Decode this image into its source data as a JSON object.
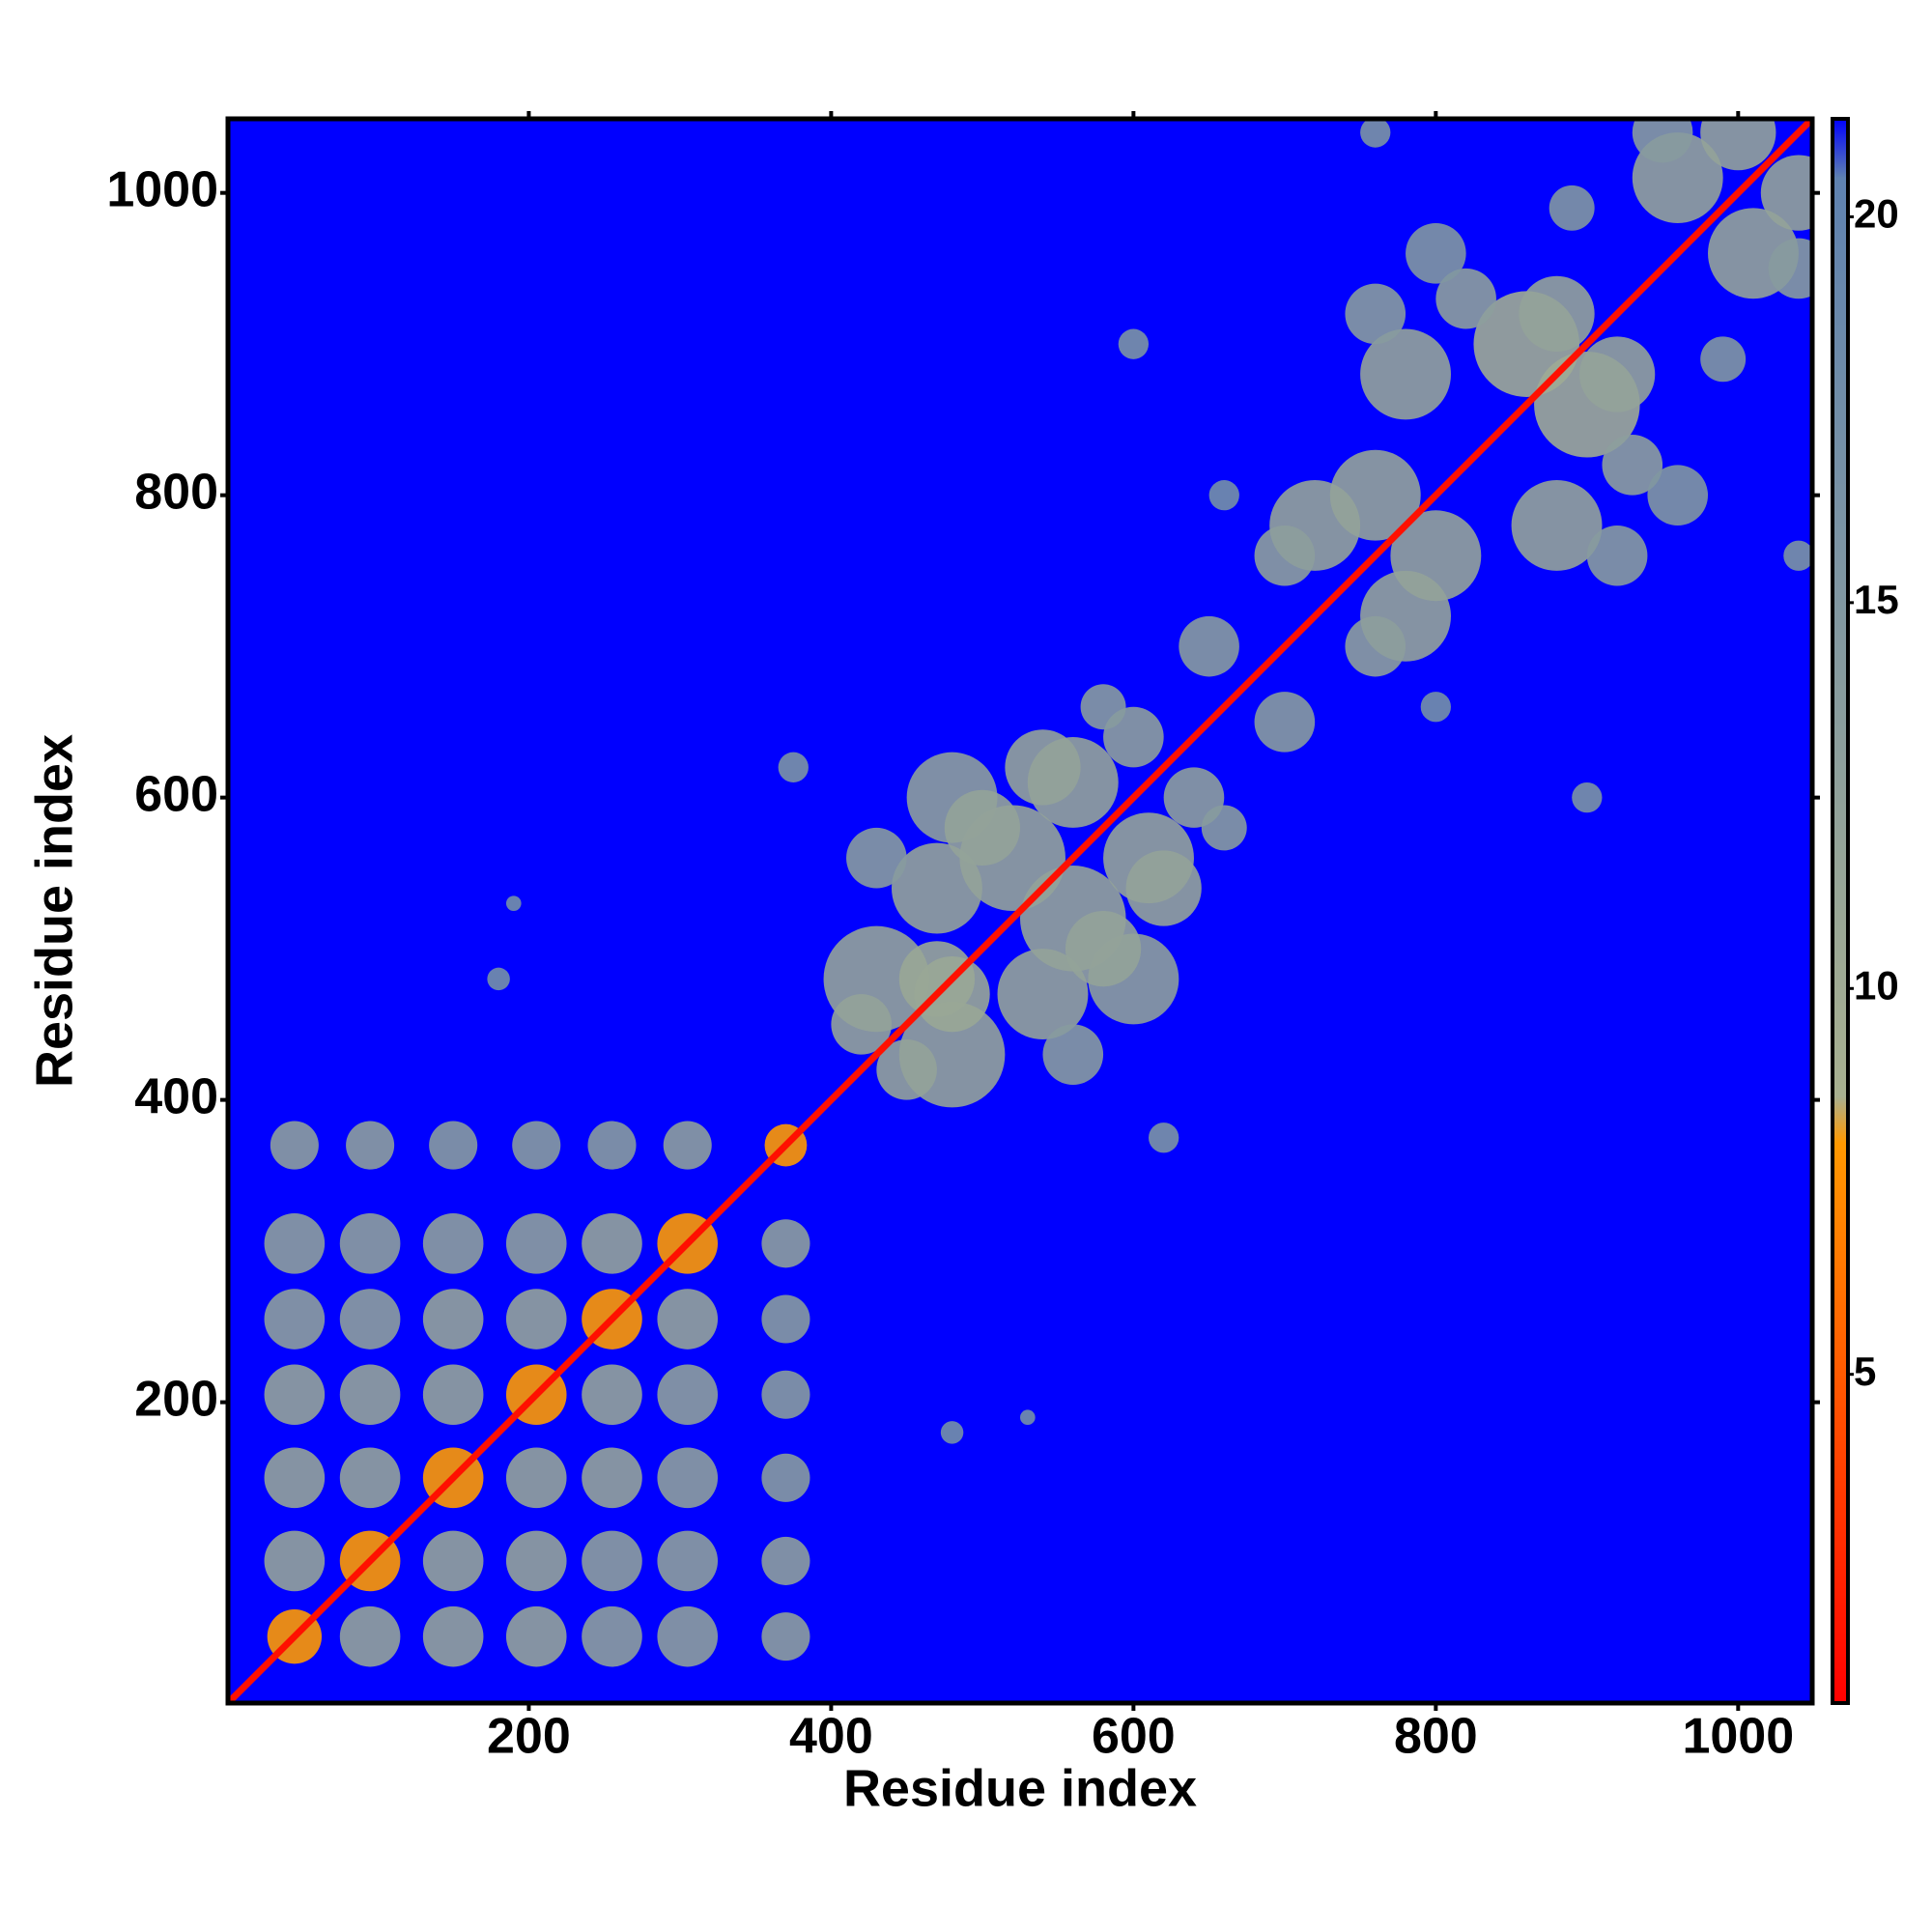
{
  "chart_data": {
    "type": "heatmap",
    "xlabel": "Residue index",
    "ylabel": "Residue index",
    "xlim": [
      1,
      1049
    ],
    "ylim": [
      1,
      1049
    ],
    "xticks": [
      200,
      400,
      600,
      800,
      1000
    ],
    "yticks": [
      200,
      400,
      600,
      800,
      1000
    ],
    "clim": [
      0.74,
      21.27
    ],
    "cticks": [
      5,
      10,
      15,
      20
    ],
    "colorscale": [
      {
        "value": 0.74,
        "color": "#ff0000"
      },
      {
        "value": 8,
        "color": "#ff9900"
      },
      {
        "value": 8.6,
        "color": "#a8b090"
      },
      {
        "value": 20.5,
        "color": "#5f82b0"
      },
      {
        "value": 21.27,
        "color": "#0000ff"
      }
    ],
    "background_value": 21.27,
    "diagonal_value": 1.5,
    "symmetric": true,
    "blobs": {
      "x": [
        45,
        45,
        45,
        45,
        45,
        45,
        45,
        95,
        95,
        95,
        95,
        95,
        95,
        150,
        150,
        150,
        150,
        150,
        205,
        205,
        205,
        205,
        255,
        255,
        255,
        305,
        305,
        370,
        430,
        470,
        520,
        480,
        560,
        500,
        430,
        600,
        540,
        470,
        450,
        580,
        650,
        720,
        760,
        780,
        860,
        880,
        820,
        760,
        700,
        960,
        1000,
        950,
        800,
        890,
        600,
        660,
        760,
        180,
        190,
        375
      ],
      "y": [
        45,
        95,
        150,
        205,
        255,
        305,
        370,
        95,
        150,
        205,
        255,
        305,
        370,
        150,
        205,
        255,
        305,
        370,
        205,
        255,
        305,
        370,
        255,
        305,
        370,
        305,
        370,
        370,
        480,
        540,
        560,
        600,
        610,
        580,
        560,
        640,
        620,
        480,
        420,
        660,
        700,
        780,
        800,
        880,
        900,
        920,
        930,
        920,
        760,
        1010,
        1040,
        1040,
        960,
        990,
        900,
        800,
        1040,
        480,
        530,
        620
      ],
      "size": [
        36,
        40,
        40,
        40,
        40,
        40,
        32,
        40,
        40,
        40,
        40,
        40,
        32,
        40,
        40,
        40,
        40,
        32,
        40,
        40,
        40,
        32,
        40,
        40,
        32,
        40,
        32,
        28,
        70,
        60,
        70,
        60,
        60,
        50,
        40,
        40,
        50,
        50,
        40,
        30,
        40,
        60,
        60,
        60,
        70,
        50,
        40,
        40,
        40,
        60,
        50,
        40,
        40,
        30,
        20,
        20,
        20,
        15,
        10,
        20
      ],
      "values": [
        8,
        12,
        12,
        12,
        13,
        13,
        13,
        8,
        12,
        12,
        13,
        13,
        13,
        8,
        12,
        12,
        13,
        14,
        8,
        12,
        13,
        14,
        8,
        12,
        14,
        8,
        13,
        8,
        12,
        12,
        12,
        13,
        12,
        12,
        14,
        13,
        12,
        11,
        12,
        14,
        14,
        12,
        12,
        12,
        10,
        12,
        13,
        14,
        13,
        12,
        12,
        14,
        15,
        15,
        16,
        17,
        16,
        17,
        17,
        16
      ]
    }
  }
}
